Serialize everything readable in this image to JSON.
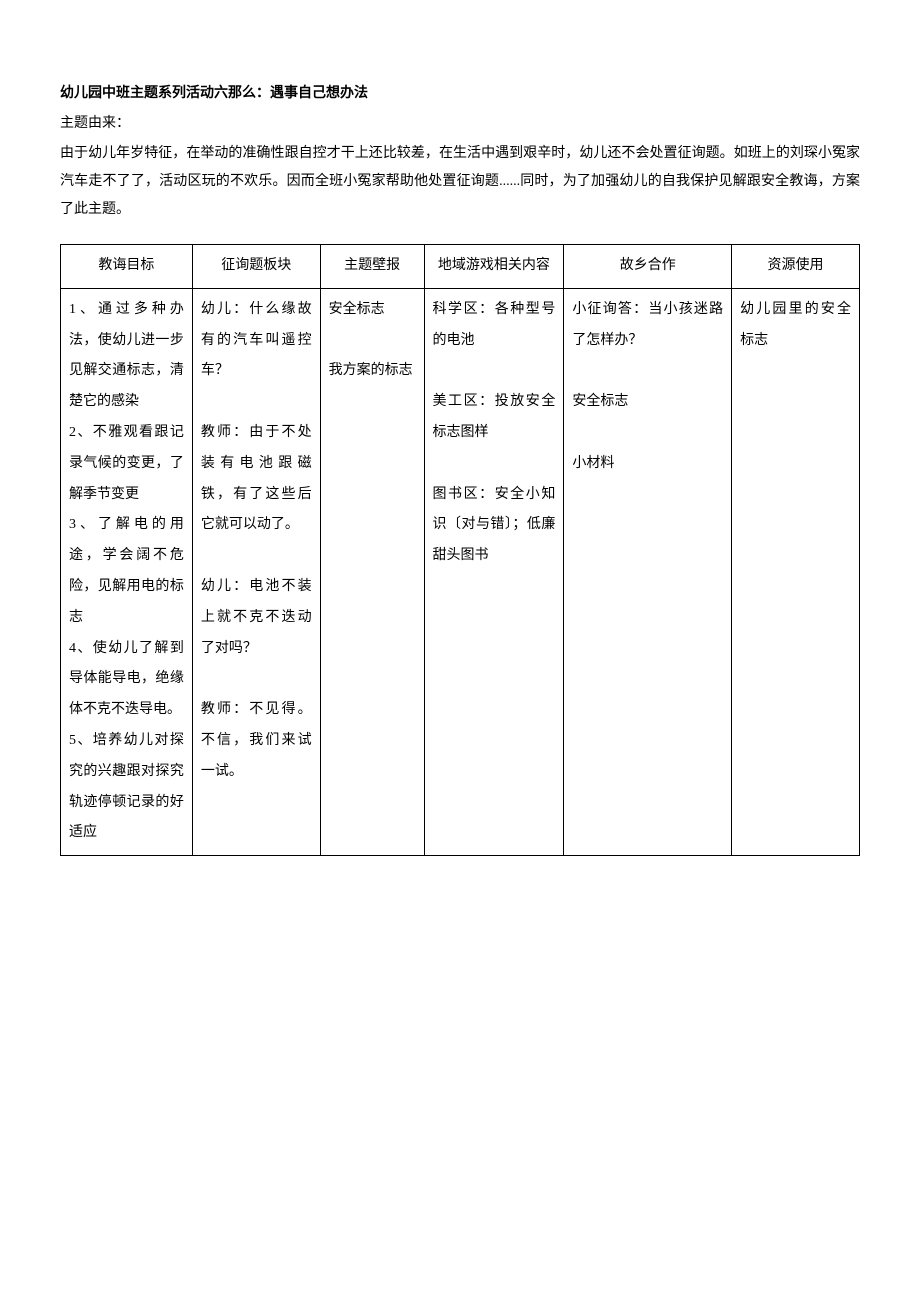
{
  "title": "幼儿园中班主题系列活动六那么：遇事自己想办法",
  "subtitle": "主题由来：",
  "paragraph": "由于幼儿年岁特征，在举动的准确性跟自控才干上还比较差，在生活中遇到艰辛时，幼儿还不会处置征询题。如班上的刘琛小冤家汽车走不了了，活动区玩的不欢乐。因而全班小冤家帮助他处置征询题......同时，为了加强幼儿的自我保护见解跟安全教诲，方案了此主题。",
  "table": {
    "headers": [
      "教诲目标",
      "征询题板块",
      "主题壁报",
      "地域游戏相关内容",
      "故乡合作",
      "资源使用"
    ],
    "row": {
      "col1": "1、通过多种办法，使幼儿进一步见解交通标志，清楚它的感染\n2、不雅观看跟记录气候的变更，了解季节变更\n3、了解电的用途，学会阔不危险，见解用电的标志\n4、使幼儿了解到导体能导电，绝缘体不克不迭导电。\n5、培养幼儿对探究的兴趣跟对探究轨迹停顿记录的好适应",
      "col2": "幼儿：什么缘故有的汽车叫遥控车？\n\n教师：由于不处装有电池跟磁铁，有了这些后它就可以动了。\n\n幼儿：电池不装上就不克不迭动了对吗？\n\n教师：不见得。不信，我们来试一试。",
      "col3": "安全标志\n\n我方案的标志",
      "col4": "科学区：各种型号的电池\n\n美工区：投放安全标志图样\n\n图书区：安全小知识〔对与错〕；低廉甜头图书",
      "col5": "小征询答：当小孩迷路了怎样办？\n\n安全标志\n\n小材料",
      "col6": "幼儿园里的安全标志"
    }
  }
}
